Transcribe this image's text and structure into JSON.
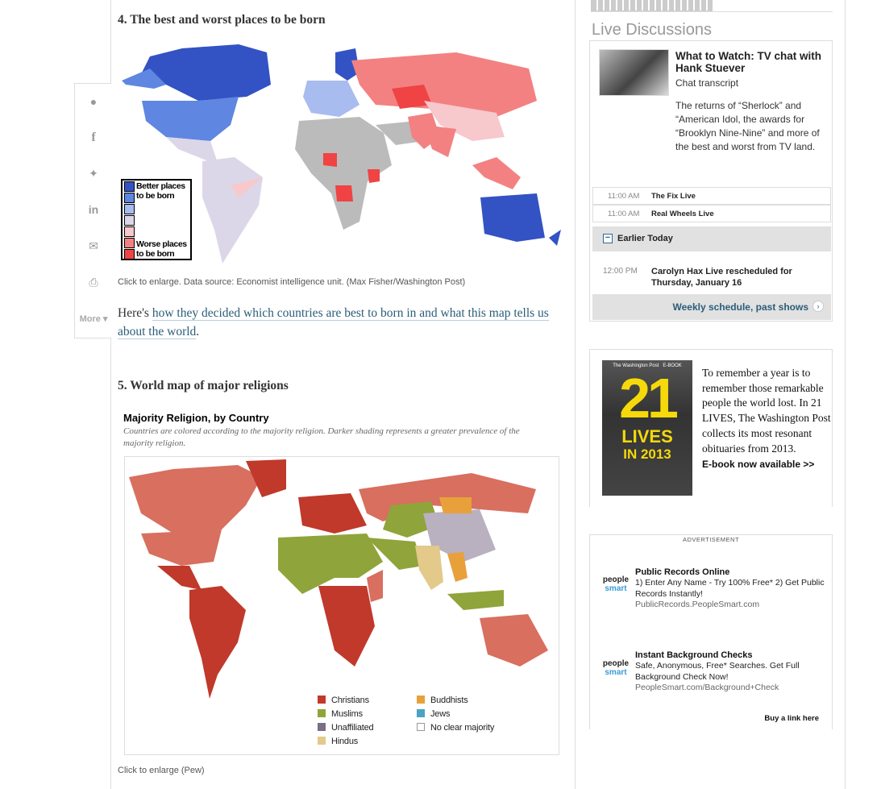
{
  "share_rail": {
    "icons": [
      "comment-icon",
      "facebook-icon",
      "twitter-icon",
      "linkedin-icon",
      "email-icon",
      "print-icon"
    ],
    "more_label": "More"
  },
  "section4": {
    "heading": "4. The best and worst places to be born",
    "legend": {
      "top": "Better places to be born",
      "bottom": "Worse places to be born",
      "colors": [
        "#3352c4",
        "#5f86e0",
        "#a9bcef",
        "#dcd7e8",
        "#f7c8cc",
        "#f38181",
        "#f04343"
      ]
    },
    "caption": "Click to enlarge. Data source: Economist intelligence unit. (Max Fisher/Washington Post)",
    "para_prefix": "Here's ",
    "para_link": "how they decided which countries are best to born in and what this map tells us about the world",
    "para_suffix": "."
  },
  "section5": {
    "heading": "5. World map of major religions",
    "map_title": "Majority Religion, by Country",
    "map_subtitle": "Countries are colored according to the majority religion. Darker shading represents a greater prevalence of the majority religion.",
    "legend": [
      {
        "label": "Christians",
        "color": "#c0392b"
      },
      {
        "label": "Buddhists",
        "color": "#e8a13a"
      },
      {
        "label": "Muslims",
        "color": "#8fa43a"
      },
      {
        "label": "Jews",
        "color": "#4aa3c4"
      },
      {
        "label": "Unaffiliated",
        "color": "#7a6f86"
      },
      {
        "label": "No clear majority",
        "color": "#ffffff"
      },
      {
        "label": "Hindus",
        "color": "#e3c98a"
      }
    ],
    "caption": "Click to enlarge (Pew)"
  },
  "sidebar": {
    "live_title": "Live Discussions",
    "feature": {
      "title": "What to Watch: TV chat with Hank Stuever",
      "subtitle": "Chat transcript",
      "description": "The returns of “Sherlock” and “American Idol, the awards for “Brooklyn Nine-Nine” and more of the best and worst from TV land."
    },
    "schedule": [
      {
        "time": "11:00 AM",
        "name": "The Fix Live"
      },
      {
        "time": "11:00 AM",
        "name": "Real Wheels Live"
      }
    ],
    "earlier_label": "Earlier Today",
    "earlier": [
      {
        "time": "12:00 PM",
        "name": "Carolyn Hax Live rescheduled for Thursday, January 16"
      }
    ],
    "weekly_link": "Weekly schedule, past shows",
    "ebook": {
      "cover_brand": "The Washington Post",
      "cover_tag": "E-BOOK",
      "cover_number": "21",
      "cover_lives": "LIVES",
      "cover_year": "IN 2013",
      "text": "To remember a year is to remember those remarkable people the world lost. In 21 LIVES, The Washington Post collects its most resonant obituaries from 2013.",
      "cta": "E-book now available >>"
    },
    "ad": {
      "label": "ADVERTISEMENT",
      "items": [
        {
          "logo_top": "people",
          "logo_bottom": "smart",
          "title": "Public Records Online",
          "desc": "1) Enter Any Name - Try 100% Free* 2) Get Public Records Instantly!",
          "url": "PublicRecords.PeopleSmart.com"
        },
        {
          "logo_top": "people",
          "logo_bottom": "smart",
          "title": "Instant Background Checks",
          "desc": "Safe, Anonymous, Free* Searches. Get Full Background Check Now!",
          "url": "PeopleSmart.com/Background+Check"
        }
      ],
      "buy_link": "Buy a link here"
    }
  }
}
